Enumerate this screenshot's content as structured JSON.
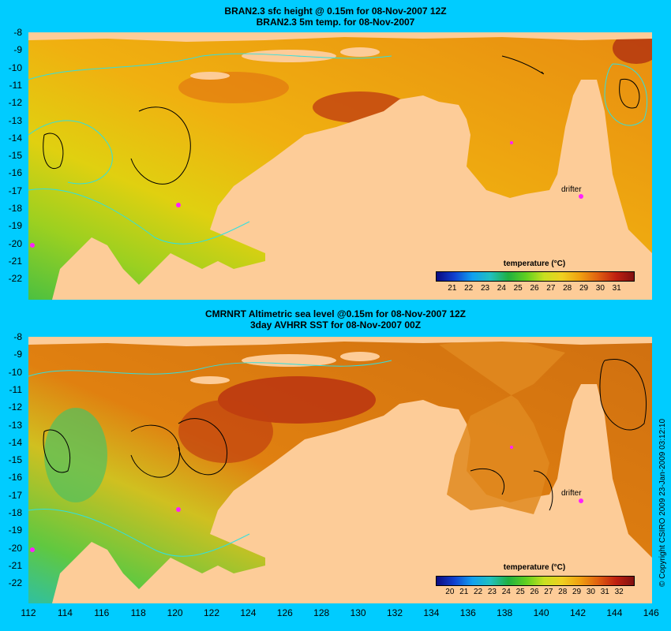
{
  "top_panel": {
    "title_line1": "BRAN2.3 sfc height @ 0.15m for 08-Nov-2007 12Z",
    "title_line2": "BRAN2.3 5m temp. for 08-Nov-2007",
    "colorbar_title": "temperature (°C)",
    "colorbar_ticks": [
      "21",
      "22",
      "23",
      "24",
      "25",
      "26",
      "27",
      "28",
      "29",
      "30",
      "31"
    ],
    "drifter_label": "drifter"
  },
  "bottom_panel": {
    "title_line1": "CMRNRT Altimetric sea level  @0.15m  for 08-Nov-2007 12Z",
    "title_line2": "3day AVHRR SST for 08-Nov-2007 00Z",
    "colorbar_title": "temperature (°C)",
    "colorbar_ticks": [
      "20",
      "21",
      "22",
      "23",
      "24",
      "25",
      "26",
      "27",
      "28",
      "29",
      "30",
      "31",
      "32"
    ],
    "drifter_label": "drifter"
  },
  "axes": {
    "lat_labels": [
      "-8",
      "-9",
      "-10",
      "-11",
      "-12",
      "-13",
      "-14",
      "-15",
      "-16",
      "-17",
      "-18",
      "-19",
      "-20",
      "-21",
      "-22"
    ],
    "lon_labels": [
      "112",
      "114",
      "116",
      "118",
      "120",
      "122",
      "124",
      "126",
      "128",
      "130",
      "132",
      "134",
      "136",
      "138",
      "140",
      "142",
      "144",
      "146"
    ]
  },
  "copyright": "© Copyright CSIRO 2009   23-Jan-2009 03:12:10",
  "colors": {
    "background": "#00ccff",
    "land": "#fdcc98",
    "warm_sea": "#e08a10",
    "cool_sea": "#70c030",
    "contour_cyan": "#30e0e0"
  }
}
